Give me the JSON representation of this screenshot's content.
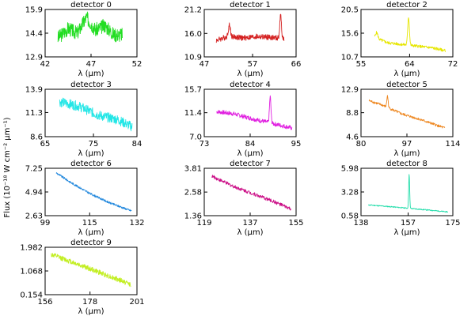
{
  "figure": {
    "ylabel": "Flux (10⁻¹⁸ W cm⁻² μm⁻¹)"
  },
  "chart_data": [
    {
      "type": "line",
      "title": "detector 0",
      "xlabel": "λ (μm)",
      "color": "#22dd22",
      "xlim": [
        42,
        52
      ],
      "ylim": [
        12.9,
        15.9
      ],
      "xticks": [
        "42",
        "47",
        "52"
      ],
      "yticks": [
        "12.9",
        "14.4",
        "15.9"
      ],
      "series": [
        {
          "x": [
            43.4,
            44.5,
            45.5,
            46.5,
            47.5,
            48.5,
            49.5,
            50.4
          ],
          "y": [
            14.1,
            14.7,
            14.4,
            15.4,
            14.6,
            14.9,
            14.3,
            14.3
          ],
          "noise": 0.45,
          "features": []
        }
      ]
    },
    {
      "type": "line",
      "title": "detector 1",
      "xlabel": "λ (μm)",
      "color": "#d42020",
      "xlim": [
        47,
        66
      ],
      "ylim": [
        10.9,
        21.2
      ],
      "xticks": [
        "47",
        "57",
        "66"
      ],
      "yticks": [
        "10.9",
        "16.0",
        "21.2"
      ],
      "series": [
        {
          "x": [
            49.5,
            52.0,
            55.0,
            58.0,
            61.0,
            63.5
          ],
          "y": [
            14.5,
            15.4,
            15.0,
            15.3,
            15.1,
            14.8
          ],
          "noise": 0.6,
          "features": [
            {
              "x": 52.2,
              "height": 2.4,
              "width": 0.3
            },
            {
              "x": 62.8,
              "height": 5.0,
              "width": 0.25
            }
          ]
        }
      ]
    },
    {
      "type": "line",
      "title": "detector 2",
      "xlabel": "λ (μm)",
      "color": "#e6e600",
      "xlim": [
        55,
        72
      ],
      "ylim": [
        10.7,
        20.5
      ],
      "xticks": [
        "55",
        "64",
        "72"
      ],
      "yticks": [
        "10.7",
        "15.6",
        "20.5"
      ],
      "series": [
        {
          "x": [
            57.5,
            60.0,
            64.0,
            68.0,
            70.6
          ],
          "y": [
            14.7,
            13.6,
            13.1,
            12.6,
            12.0
          ],
          "noise": 0.3,
          "features": [
            {
              "x": 57.9,
              "height": 1.2,
              "width": 0.3
            },
            {
              "x": 63.8,
              "height": 5.8,
              "width": 0.22
            }
          ]
        }
      ]
    },
    {
      "type": "line",
      "title": "detector 3",
      "xlabel": "λ (μm)",
      "color": "#22e6e6",
      "xlim": [
        65,
        84
      ],
      "ylim": [
        8.6,
        13.9
      ],
      "xticks": [
        "65",
        "75",
        "84"
      ],
      "yticks": [
        "8.6",
        "11.3",
        "13.9"
      ],
      "series": [
        {
          "x": [
            68.0,
            72.0,
            76.0,
            80.0,
            83.0
          ],
          "y": [
            12.5,
            12.0,
            11.0,
            10.5,
            9.7
          ],
          "noise": 0.55,
          "features": []
        }
      ]
    },
    {
      "type": "line",
      "title": "detector 4",
      "xlabel": "λ (μm)",
      "color": "#e020e0",
      "xlim": [
        73,
        95
      ],
      "ylim": [
        7.0,
        15.7
      ],
      "xticks": [
        "73",
        "84",
        "95"
      ],
      "yticks": [
        "7.0",
        "11.4",
        "15.7"
      ],
      "series": [
        {
          "x": [
            76.0,
            80.0,
            85.0,
            90.0,
            94.0
          ],
          "y": [
            11.6,
            11.2,
            10.2,
            9.3,
            8.6
          ],
          "noise": 0.4,
          "features": [
            {
              "x": 88.8,
              "height": 4.8,
              "width": 0.25
            }
          ]
        }
      ]
    },
    {
      "type": "line",
      "title": "detector 5",
      "xlabel": "λ (μm)",
      "color": "#ee8822",
      "xlim": [
        80,
        114
      ],
      "ylim": [
        4.6,
        12.9
      ],
      "xticks": [
        "80",
        "97",
        "114"
      ],
      "yticks": [
        "4.6",
        "8.8",
        "12.9"
      ],
      "series": [
        {
          "x": [
            83.0,
            88.0,
            95.0,
            102.0,
            111.0
          ],
          "y": [
            10.9,
            10.1,
            8.6,
            7.6,
            6.1
          ],
          "noise": 0.22,
          "features": [
            {
              "x": 89.8,
              "height": 2.0,
              "width": 0.35
            }
          ]
        }
      ]
    },
    {
      "type": "line",
      "title": "detector 6",
      "xlabel": "λ (μm)",
      "color": "#2288dd",
      "xlim": [
        99,
        132
      ],
      "ylim": [
        2.63,
        7.25
      ],
      "xticks": [
        "99",
        "115",
        "132"
      ],
      "yticks": [
        "2.63",
        "4.94",
        "7.25"
      ],
      "series": [
        {
          "x": [
            103.0,
            108.0,
            115.0,
            122.0,
            130.0
          ],
          "y": [
            6.8,
            5.9,
            4.8,
            3.9,
            3.1
          ],
          "noise": 0.1,
          "features": []
        }
      ]
    },
    {
      "type": "line",
      "title": "detector 7",
      "xlabel": "λ (μm)",
      "color": "#cc1188",
      "xlim": [
        119,
        155
      ],
      "ylim": [
        1.36,
        3.81
      ],
      "xticks": [
        "119",
        "137",
        "155"
      ],
      "yticks": [
        "1.36",
        "2.58",
        "3.81"
      ],
      "series": [
        {
          "x": [
            122.0,
            130.0,
            138.0,
            146.0,
            153.0
          ],
          "y": [
            3.4,
            2.9,
            2.5,
            2.1,
            1.7
          ],
          "noise": 0.09,
          "features": []
        }
      ]
    },
    {
      "type": "line",
      "title": "detector 8",
      "xlabel": "λ (μm)",
      "color": "#22ddaa",
      "xlim": [
        138,
        175
      ],
      "ylim": [
        0.58,
        5.98
      ],
      "xticks": [
        "138",
        "157",
        "175"
      ],
      "yticks": [
        "0.58",
        "3.28",
        "5.98"
      ],
      "series": [
        {
          "x": [
            141.0,
            150.0,
            158.0,
            166.0,
            173.0
          ],
          "y": [
            1.8,
            1.6,
            1.4,
            1.2,
            1.0
          ],
          "noise": 0.06,
          "features": [
            {
              "x": 157.4,
              "height": 3.9,
              "width": 0.28
            }
          ]
        }
      ]
    },
    {
      "type": "line",
      "title": "detector 9",
      "xlabel": "λ (μm)",
      "color": "#c2ee22",
      "xlim": [
        156,
        201
      ],
      "ylim": [
        0.154,
        1.982
      ],
      "xticks": [
        "156",
        "178",
        "201"
      ],
      "yticks": [
        "0.154",
        "1.068",
        "1.982"
      ],
      "series": [
        {
          "x": [
            159.0,
            168.0,
            178.0,
            188.0,
            198.0
          ],
          "y": [
            1.7,
            1.45,
            1.15,
            0.85,
            0.55
          ],
          "noise": 0.1,
          "features": []
        }
      ]
    }
  ]
}
